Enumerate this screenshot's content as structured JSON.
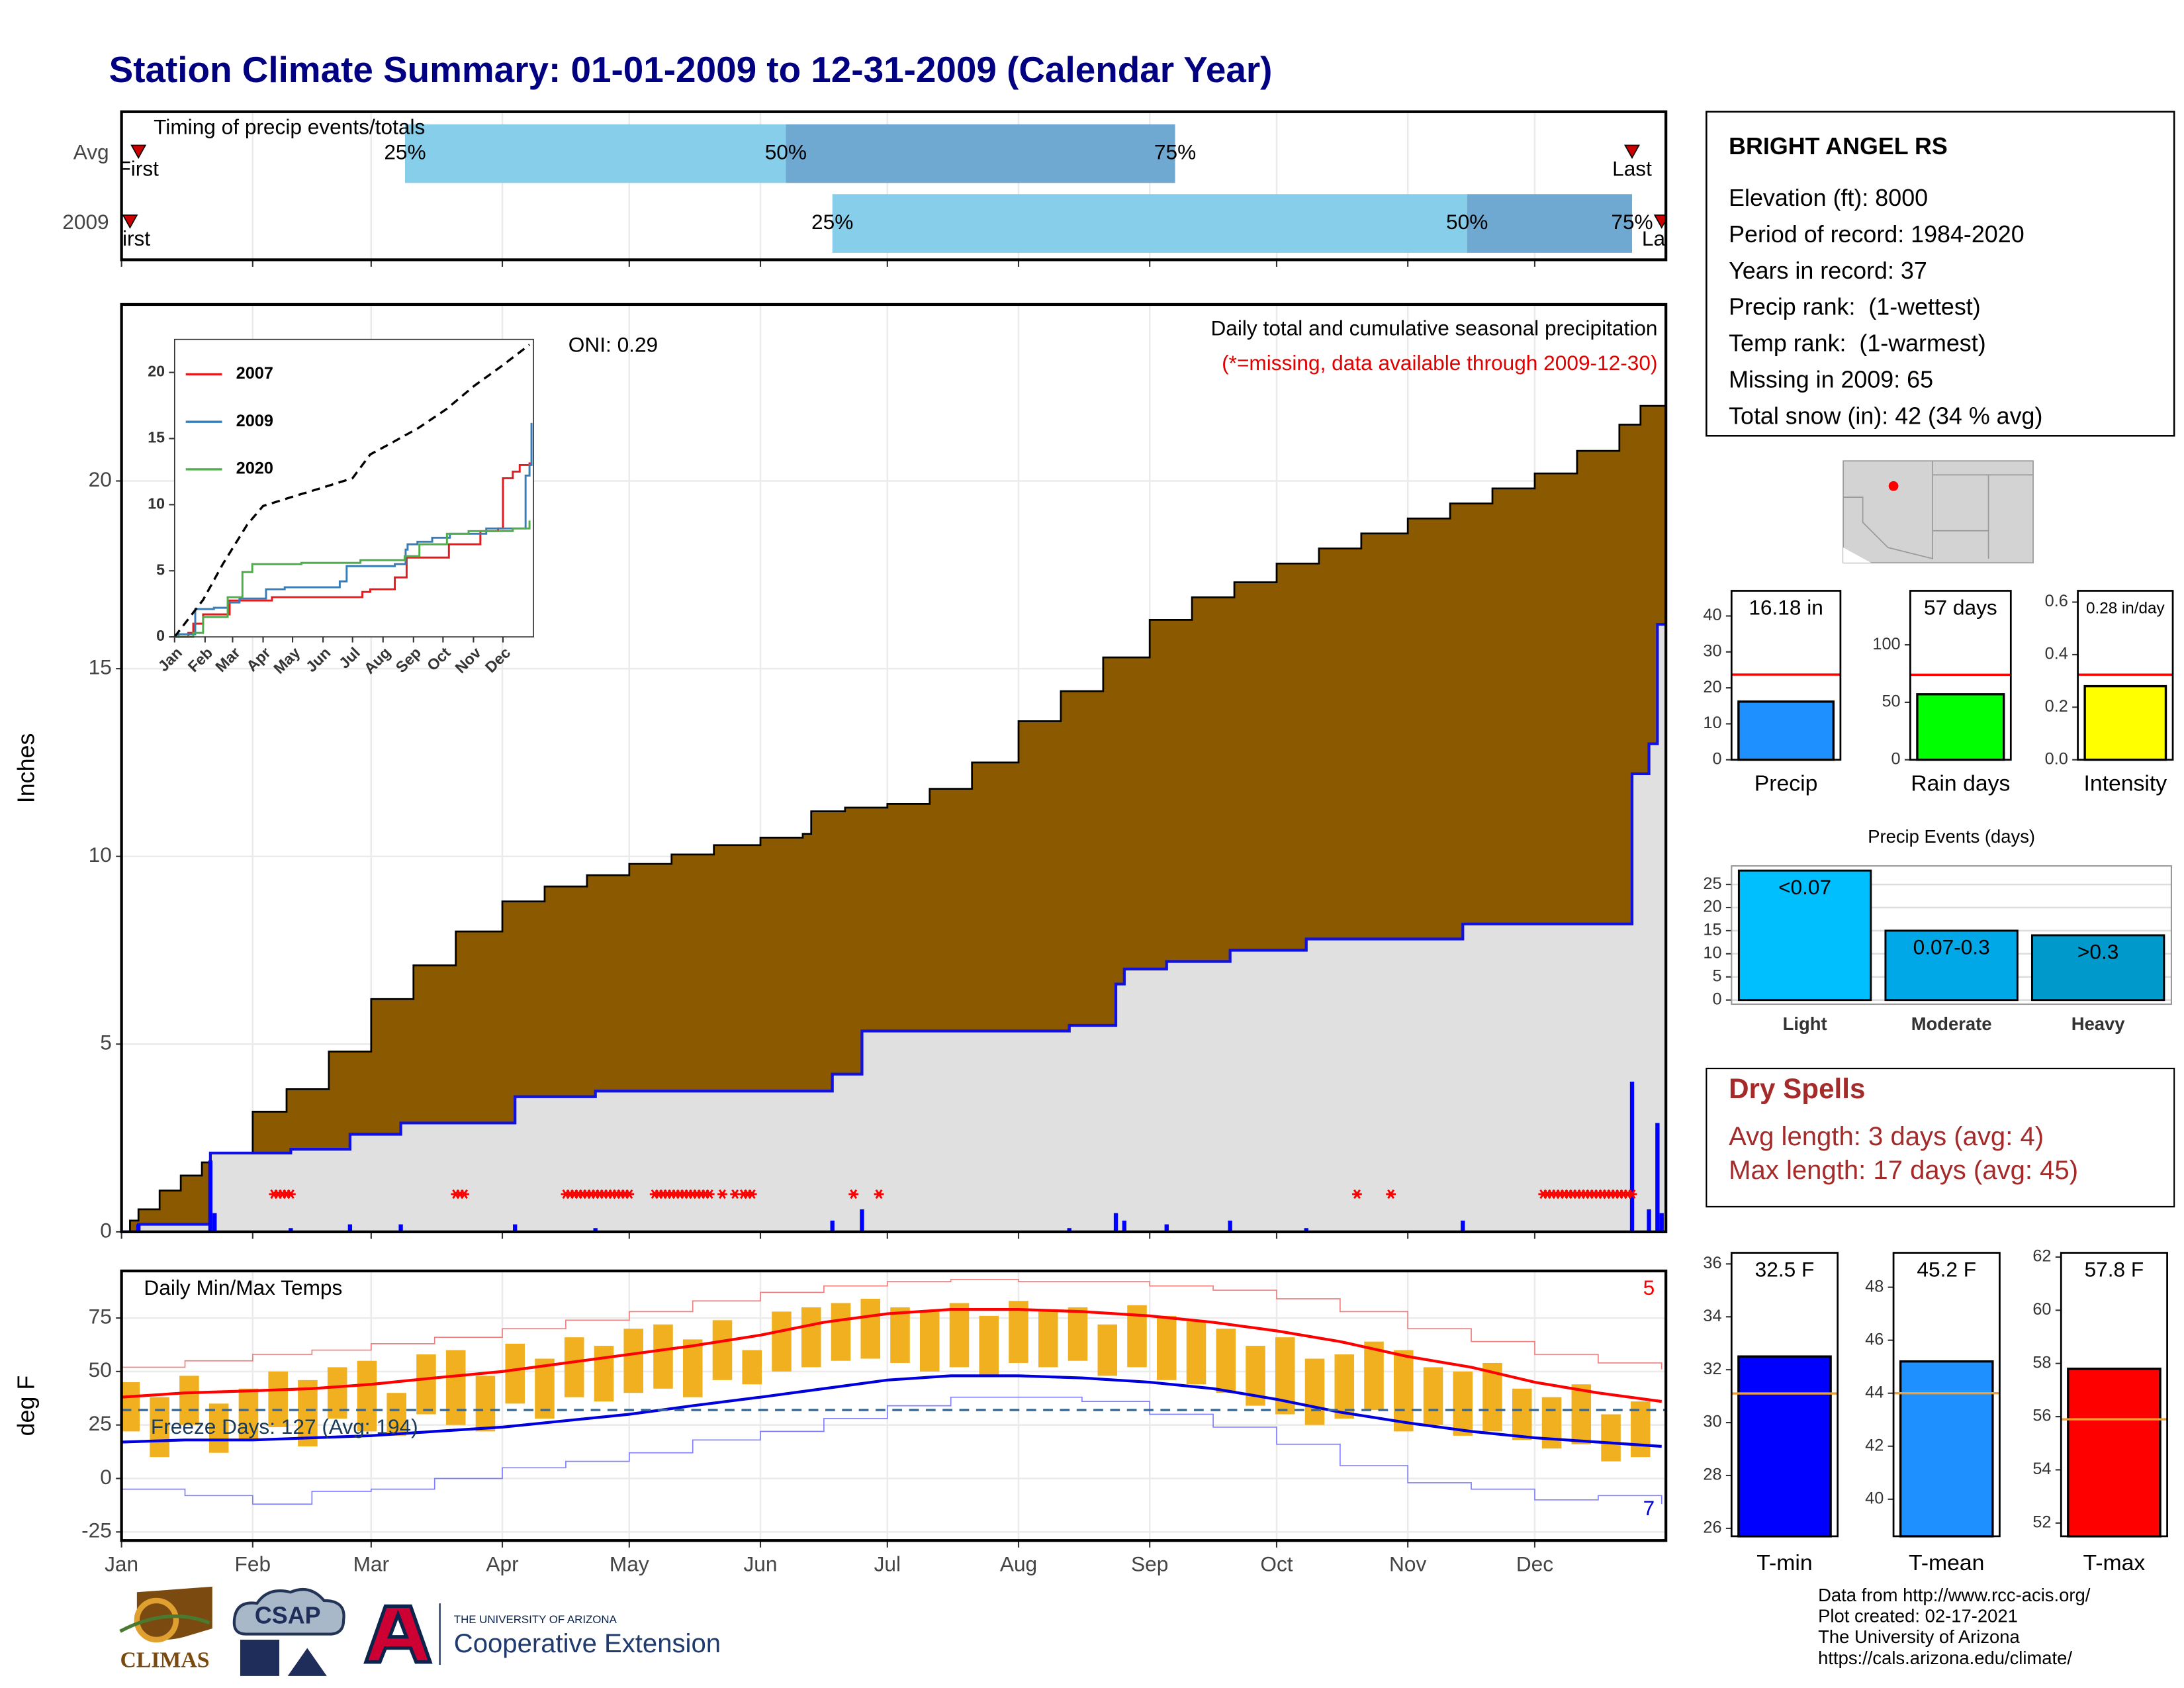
{
  "title": "Station Climate Summary: 01-01-2009 to 12-31-2009 (Calendar Year)",
  "station": {
    "name": "BRIGHT ANGEL RS",
    "lines": [
      "Elevation (ft): 8000",
      "Period of record: 1984-2020",
      "Years in record: 37",
      "Precip rank:  (1-wettest)",
      "Temp rank:  (1-warmest)",
      "Missing in 2009: 65",
      "Total snow (in): 42 (34 % avg)"
    ]
  },
  "dry_spells": {
    "title": "Dry Spells",
    "lines": [
      "Avg length: 3 days (avg: 4)",
      "Max length: 17 days (avg: 45)"
    ]
  },
  "footer": [
    "Data from http://www.rcc-acis.org/",
    "Plot created: 02-17-2021",
    "The University of Arizona",
    "https://cals.arizona.edu/climate/"
  ],
  "logos": {
    "climas": "CLIMAS",
    "csap": "CSAP",
    "university": "THE UNIVERSITY OF ARIZONA",
    "extension": "Cooperative Extension"
  },
  "chart_data": [
    {
      "type": "timing",
      "title": "Timing of precip events/totals",
      "categories": [
        "Avg",
        "2009"
      ],
      "rows": [
        [
          5,
          68,
          158,
          250,
          358
        ],
        [
          3,
          169,
          319,
          358,
          365
        ]
      ],
      "point_labels": [
        "First",
        "25%",
        "50%",
        "75%",
        "Last"
      ],
      "colors": [
        "#87ceeb",
        "#6fa8d0"
      ],
      "marker_color": "#cc0000",
      "xlim": [
        1,
        366
      ],
      "xticks": [
        1,
        32,
        60,
        91,
        121,
        152,
        182,
        213,
        244,
        274,
        305,
        335
      ],
      "grid": true
    },
    {
      "type": "precip",
      "ylabel": "Inches",
      "oni": "ONI: 0.29",
      "subtitle": "Daily total and cumulative seasonal precipitation",
      "note": "(*=missing, data available through 2009-12-30)",
      "note_color": "#e00000",
      "xlim": [
        1,
        366
      ],
      "xticks": [
        1,
        32,
        60,
        91,
        121,
        152,
        182,
        213,
        244,
        274,
        305,
        335
      ],
      "ylim": [
        0,
        24.7
      ],
      "yticks": [
        0,
        5,
        10,
        15,
        20
      ],
      "grid": true,
      "series": [
        {
          "color": "#8b5a00",
          "x": [
            1,
            3,
            5,
            10,
            15,
            20,
            22,
            32,
            40,
            50,
            60,
            70,
            80,
            91,
            101,
            111,
            121,
            131,
            141,
            152,
            162,
            164,
            172,
            182,
            192,
            202,
            213,
            223,
            233,
            244,
            254,
            264,
            274,
            284,
            294,
            305,
            315,
            325,
            335,
            345,
            355,
            360,
            366
          ],
          "values": [
            0,
            0.3,
            0.6,
            1.1,
            1.5,
            1.85,
            2.1,
            3.2,
            3.8,
            4.8,
            6.2,
            7.1,
            8,
            8.8,
            9.2,
            9.5,
            9.8,
            10.05,
            10.3,
            10.5,
            10.6,
            11.2,
            11.3,
            11.4,
            11.8,
            12.5,
            13.6,
            14.4,
            15.3,
            16.3,
            16.9,
            17.3,
            17.8,
            18.2,
            18.6,
            19,
            19.4,
            19.8,
            20.2,
            20.8,
            21.5,
            22,
            22.5
          ]
        },
        {
          "color": "#1010e0",
          "area_color": "#e0e0e0",
          "x": [
            1,
            5,
            22,
            41,
            55,
            67,
            94,
            113,
            169,
            176,
            225,
            236,
            238,
            248,
            263,
            281,
            318,
            358,
            362,
            364
          ],
          "values": [
            0,
            0.2,
            2.1,
            2.2,
            2.6,
            2.9,
            3.6,
            3.75,
            4.2,
            5.35,
            5.5,
            6.6,
            7,
            7.2,
            7.5,
            7.8,
            8.2,
            12.2,
            13,
            16.18
          ]
        }
      ],
      "daily": {
        "color": "#0000ff",
        "x": [
          5,
          22,
          23,
          41,
          55,
          67,
          94,
          113,
          169,
          176,
          225,
          236,
          238,
          248,
          263,
          281,
          318,
          358,
          362,
          364,
          365
        ],
        "values": [
          0.2,
          1.9,
          0.5,
          0.1,
          0.2,
          0.2,
          0.2,
          0.1,
          0.3,
          0.6,
          0.1,
          0.5,
          0.3,
          0.2,
          0.3,
          0.1,
          0.3,
          4,
          0.6,
          2.9,
          0.5
        ]
      },
      "missing_color": "#ff0000",
      "missing_days": [
        37,
        38,
        39,
        40,
        41,
        80,
        81,
        82,
        106,
        107,
        108,
        109,
        110,
        111,
        112,
        113,
        114,
        115,
        116,
        117,
        118,
        119,
        120,
        121,
        127,
        128,
        129,
        130,
        131,
        132,
        133,
        134,
        135,
        136,
        137,
        138,
        139,
        140,
        143,
        146,
        148,
        149,
        150,
        174,
        180,
        293,
        301,
        337,
        338,
        339,
        340,
        341,
        342,
        343,
        344,
        345,
        346,
        347,
        348,
        349,
        350,
        351,
        352,
        353,
        354,
        355,
        356,
        357,
        358
      ]
    },
    {
      "type": "line",
      "xlim": [
        1,
        366
      ],
      "xticks": [
        {
          "value": 1,
          "label": "Jan"
        },
        {
          "value": 32,
          "label": "Feb"
        },
        {
          "value": 60,
          "label": "Mar"
        },
        {
          "value": 91,
          "label": "Apr"
        },
        {
          "value": 121,
          "label": "May"
        },
        {
          "value": 152,
          "label": "Jun"
        },
        {
          "value": 182,
          "label": "Jul"
        },
        {
          "value": 213,
          "label": "Aug"
        },
        {
          "value": 244,
          "label": "Sep"
        },
        {
          "value": 274,
          "label": "Oct"
        },
        {
          "value": 305,
          "label": "Nov"
        },
        {
          "value": 335,
          "label": "Dec"
        }
      ],
      "ylim": [
        0,
        22.5
      ],
      "yticks": [
        0,
        5,
        10,
        15,
        20
      ],
      "series": [
        {
          "name": "2007",
          "color": "#e41a1c",
          "x": [
            1,
            15,
            20,
            30,
            57,
            100,
            192,
            200,
            225,
            237,
            280,
            312,
            330,
            335,
            345,
            352,
            362
          ],
          "values": [
            0,
            0.3,
            1,
            1.7,
            2.75,
            3,
            3.4,
            3.6,
            4.5,
            6,
            7,
            8,
            8.2,
            12,
            12.5,
            13,
            13.2
          ]
        },
        {
          "name": "2009",
          "color": "#377eb8",
          "x": [
            1,
            5,
            22,
            41,
            55,
            67,
            94,
            113,
            169,
            176,
            225,
            236,
            238,
            248,
            263,
            281,
            318,
            358,
            362,
            364
          ],
          "values": [
            0,
            0.2,
            2.1,
            2.2,
            2.6,
            2.9,
            3.6,
            3.75,
            4.2,
            5.35,
            5.5,
            6.6,
            7,
            7.2,
            7.5,
            7.8,
            8.2,
            12.2,
            13,
            16.18
          ]
        },
        {
          "name": "2020",
          "color": "#4daf4a",
          "x": [
            1,
            20,
            30,
            55,
            70,
            80,
            130,
            190,
            235,
            250,
            278,
            300,
            345,
            362
          ],
          "values": [
            0,
            0.3,
            1.5,
            3,
            4.9,
            5.5,
            5.6,
            5.8,
            6.1,
            7,
            7.8,
            8,
            8.2,
            8.8
          ]
        },
        {
          "color": "#000000",
          "dash": true,
          "x": [
            1,
            30,
            50,
            75,
            91,
            121,
            152,
            182,
            200,
            220,
            249,
            277,
            306,
            334,
            362
          ],
          "values": [
            0,
            2.8,
            5.5,
            8.5,
            9.9,
            10.6,
            11.3,
            12,
            13.8,
            14.6,
            15.8,
            17.2,
            19,
            20.5,
            22.1
          ]
        }
      ]
    },
    {
      "type": "temperature",
      "title": "Daily Min/Max Temps",
      "ylabel": "deg F",
      "freeze_label": "Freeze Days: 127 (Avg: 194)",
      "freeze_line": 32,
      "record_high_days": 5,
      "record_low_days": 7,
      "xlim": [
        1,
        366
      ],
      "xticks": [
        {
          "value": 1,
          "label": "Jan"
        },
        {
          "value": 32,
          "label": "Feb"
        },
        {
          "value": 60,
          "label": "Mar"
        },
        {
          "value": 91,
          "label": "Apr"
        },
        {
          "value": 121,
          "label": "May"
        },
        {
          "value": 152,
          "label": "Jun"
        },
        {
          "value": 182,
          "label": "Jul"
        },
        {
          "value": 213,
          "label": "Aug"
        },
        {
          "value": 244,
          "label": "Sep"
        },
        {
          "value": 274,
          "label": "Oct"
        },
        {
          "value": 305,
          "label": "Nov"
        },
        {
          "value": 335,
          "label": "Dec"
        }
      ],
      "ylim": [
        -29,
        97
      ],
      "yticks": [
        -25,
        0,
        25,
        50,
        75
      ],
      "grid": true,
      "lines_x": [
        1,
        16,
        32,
        46,
        60,
        75,
        91,
        106,
        121,
        136,
        152,
        167,
        182,
        197,
        213,
        228,
        244,
        259,
        274,
        289,
        305,
        320,
        335,
        350,
        365
      ],
      "series": [
        {
          "color": "#f08080",
          "thin": true,
          "values": [
            52,
            55,
            58,
            60,
            63,
            66,
            70,
            74,
            78,
            83,
            87,
            90,
            92,
            93,
            92,
            92,
            90,
            88,
            84,
            78,
            70,
            64,
            58,
            54,
            51
          ]
        },
        {
          "color": "#8080ff",
          "thin": true,
          "values": [
            -5,
            -8,
            -12,
            -6,
            -5,
            0,
            5,
            8,
            12,
            18,
            22,
            28,
            34,
            38,
            38,
            36,
            30,
            24,
            16,
            6,
            -2,
            -5,
            -10,
            -8,
            -12
          ]
        },
        {
          "color": "#ff0000",
          "values": [
            38,
            40,
            41,
            42,
            44,
            47,
            50,
            54,
            58,
            62,
            67,
            73,
            77,
            79,
            79,
            78,
            76,
            73,
            69,
            64,
            57,
            52,
            45,
            40,
            36
          ]
        },
        {
          "color": "#0000dd",
          "values": [
            17,
            18,
            18,
            19,
            20,
            22,
            24,
            27,
            30,
            34,
            38,
            42,
            46,
            48,
            48,
            47,
            45,
            42,
            37,
            31,
            26,
            22,
            19,
            17,
            15
          ]
        }
      ],
      "daily": {
        "color": "#f0b020",
        "x": [
          3,
          10,
          17,
          24,
          31,
          38,
          45,
          52,
          59,
          66,
          73,
          80,
          87,
          94,
          101,
          108,
          115,
          122,
          129,
          136,
          143,
          150,
          157,
          164,
          171,
          178,
          185,
          192,
          199,
          206,
          213,
          220,
          227,
          234,
          241,
          248,
          255,
          262,
          269,
          276,
          283,
          290,
          297,
          304,
          311,
          318,
          325,
          332,
          339,
          346,
          353,
          360
        ],
        "high": [
          45,
          38,
          48,
          35,
          42,
          50,
          46,
          52,
          55,
          40,
          58,
          60,
          48,
          63,
          56,
          66,
          62,
          70,
          72,
          65,
          74,
          60,
          78,
          80,
          82,
          84,
          80,
          78,
          82,
          76,
          83,
          78,
          80,
          72,
          81,
          76,
          74,
          70,
          62,
          66,
          56,
          58,
          64,
          60,
          52,
          50,
          54,
          42,
          38,
          44,
          30,
          36
        ],
        "low": [
          22,
          10,
          25,
          12,
          18,
          24,
          15,
          28,
          22,
          20,
          30,
          25,
          22,
          35,
          28,
          38,
          36,
          40,
          42,
          38,
          46,
          44,
          50,
          52,
          55,
          56,
          54,
          50,
          52,
          48,
          54,
          52,
          55,
          48,
          52,
          46,
          44,
          40,
          34,
          30,
          25,
          28,
          32,
          22,
          25,
          20,
          22,
          18,
          14,
          16,
          8,
          10
        ]
      },
      "freeze_color": "#336699",
      "high_color": "#ff0000",
      "low_color": "#0000dd"
    },
    {
      "type": "bar",
      "categories": [
        "Precip"
      ],
      "values": [
        16.18
      ],
      "value_labels": [
        "16.18 in"
      ],
      "reference": 23.7,
      "reference_color": "#ff0000",
      "color": "#1e90ff",
      "ylim": [
        0,
        47
      ],
      "yticks": [
        0,
        10,
        20,
        30,
        40
      ]
    },
    {
      "type": "bar",
      "categories": [
        "Rain days"
      ],
      "values": [
        57
      ],
      "value_labels": [
        "57 days"
      ],
      "reference": 74,
      "reference_color": "#ff0000",
      "color": "#00ff00",
      "ylim": [
        0,
        147
      ],
      "yticks": [
        0,
        50,
        100
      ]
    },
    {
      "type": "bar",
      "categories": [
        "Intensity"
      ],
      "values": [
        0.28
      ],
      "value_labels": [
        "0.28 in/day"
      ],
      "reference": 0.324,
      "reference_color": "#ff0000",
      "color": "#ffff00",
      "ylim": [
        0,
        0.643
      ],
      "yticks": [
        {
          "value": 0,
          "label": "0.0"
        },
        0.2,
        0.4,
        0.6
      ]
    },
    {
      "type": "events",
      "title": "Precip Events (days)",
      "categories": [
        "Light",
        "Moderate",
        "Heavy"
      ],
      "values": [
        28,
        15,
        14
      ],
      "bin_labels": [
        "<0.07",
        "0.07-0.3",
        ">0.3"
      ],
      "colors": [
        "#00bfff",
        "#00a8e8",
        "#0099cc"
      ],
      "ylim": [
        0,
        28.4
      ],
      "yticks": [
        0,
        5,
        10,
        15,
        20,
        25
      ],
      "grid": true
    },
    {
      "type": "bar",
      "categories": [
        "T-min"
      ],
      "values": [
        32.5
      ],
      "value_labels": [
        "32.5 F"
      ],
      "reference": 31.1,
      "reference_color": "#f0a030",
      "color": "#0000ff",
      "ylim": [
        25.7,
        36.42
      ],
      "yticks": [
        26,
        28,
        30,
        32,
        34,
        36
      ]
    },
    {
      "type": "bar",
      "categories": [
        "T-mean"
      ],
      "values": [
        45.2
      ],
      "value_labels": [
        "45.2 F"
      ],
      "reference": 44,
      "reference_color": "#f0a030",
      "color": "#1e90ff",
      "ylim": [
        38.6,
        49.3
      ],
      "yticks": [
        40,
        42,
        44,
        46,
        48
      ]
    },
    {
      "type": "bar",
      "categories": [
        "T-max"
      ],
      "values": [
        57.8
      ],
      "value_labels": [
        "57.8 F"
      ],
      "reference": 55.9,
      "reference_color": "#f0a030",
      "color": "#ff0000",
      "ylim": [
        51.5,
        62.16
      ],
      "yticks": [
        52,
        54,
        56,
        58,
        60,
        62
      ]
    }
  ]
}
